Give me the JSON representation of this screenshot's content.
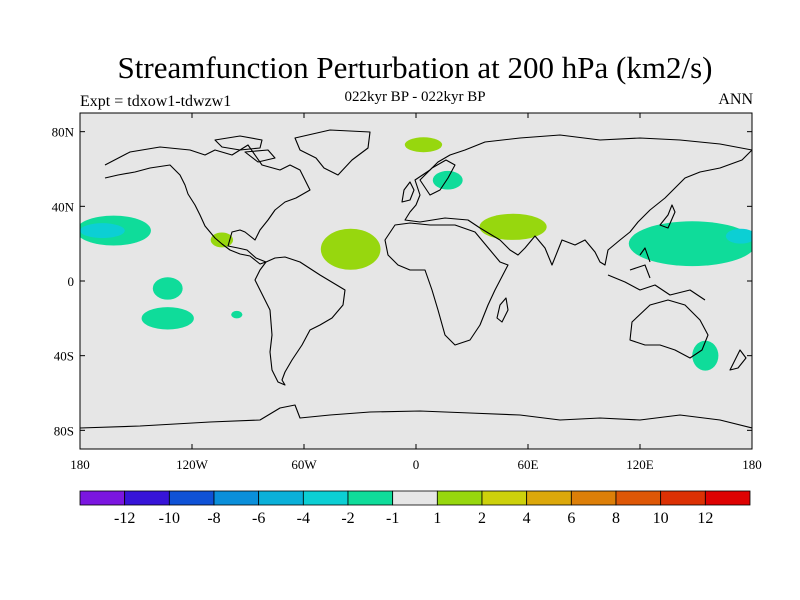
{
  "title": "Streamfunction Perturbation at 200 hPa (km2/s)",
  "subtitle": "022kyr BP - 022kyr BP",
  "experiment": "Expt = tdxow1-tdwzw1",
  "season": "ANN",
  "map": {
    "lat_range": [
      -90,
      90
    ],
    "lon_range": [
      -180,
      180
    ],
    "ocean_color": "#e6e6e6",
    "coast_color": "#000000",
    "lat_ticks": [
      {
        "label": "80N",
        "value": 80
      },
      {
        "label": "40N",
        "value": 40
      },
      {
        "label": "0",
        "value": 0
      },
      {
        "label": "40S",
        "value": -40
      },
      {
        "label": "80S",
        "value": -80
      }
    ],
    "lon_ticks": [
      {
        "label": "180",
        "value": -180
      },
      {
        "label": "120W",
        "value": -120
      },
      {
        "label": "60W",
        "value": -60
      },
      {
        "label": "0",
        "value": 0
      },
      {
        "label": "60E",
        "value": 60
      },
      {
        "label": "120E",
        "value": 120
      },
      {
        "label": "180",
        "value": 180
      }
    ]
  },
  "colorbar": {
    "colors": [
      "#7b16e0",
      "#3714d8",
      "#0f52d6",
      "#0a8fda",
      "#0ab0d9",
      "#0ccfd4",
      "#0fdc9a",
      "#e6e6e6",
      "#97d70e",
      "#cdd10b",
      "#dca80a",
      "#dd7f08",
      "#de5706",
      "#dc3104",
      "#de0202"
    ],
    "labels": [
      "-12",
      "-10",
      "-8",
      "-6",
      "-4",
      "-2",
      "-1",
      "1",
      "2",
      "4",
      "6",
      "8",
      "10",
      "12"
    ]
  },
  "anomalies": [
    {
      "lon": -162,
      "lat": 27,
      "lon_radius": 20,
      "lat_radius": 8,
      "color": "#0fdc9a"
    },
    {
      "lon": -168,
      "lat": 27,
      "lon_radius": 12,
      "lat_radius": 4,
      "color": "#0ccfd4"
    },
    {
      "lon": -133,
      "lat": -4,
      "lon_radius": 8,
      "lat_radius": 6,
      "color": "#0fdc9a"
    },
    {
      "lon": -133,
      "lat": -20,
      "lon_radius": 14,
      "lat_radius": 6,
      "color": "#0fdc9a"
    },
    {
      "lon": -96,
      "lat": -18,
      "lon_radius": 3,
      "lat_radius": 2,
      "color": "#0fdc9a"
    },
    {
      "lon": -104,
      "lat": 22,
      "lon_radius": 6,
      "lat_radius": 4,
      "color": "#97d70e"
    },
    {
      "lon": -35,
      "lat": 17,
      "lon_radius": 16,
      "lat_radius": 11,
      "color": "#97d70e"
    },
    {
      "lon": 4,
      "lat": 73,
      "lon_radius": 10,
      "lat_radius": 4,
      "color": "#97d70e"
    },
    {
      "lon": 52,
      "lat": 29,
      "lon_radius": 18,
      "lat_radius": 7,
      "color": "#97d70e"
    },
    {
      "lon": 17,
      "lat": 54,
      "lon_radius": 8,
      "lat_radius": 5,
      "color": "#0fdc9a"
    },
    {
      "lon": 148,
      "lat": 20,
      "lon_radius": 34,
      "lat_radius": 12,
      "color": "#0fdc9a"
    },
    {
      "lon": 174,
      "lat": 24,
      "lon_radius": 8,
      "lat_radius": 4,
      "color": "#0ccfd4"
    },
    {
      "lon": 155,
      "lat": -40,
      "lon_radius": 7,
      "lat_radius": 8,
      "color": "#0fdc9a"
    }
  ]
}
